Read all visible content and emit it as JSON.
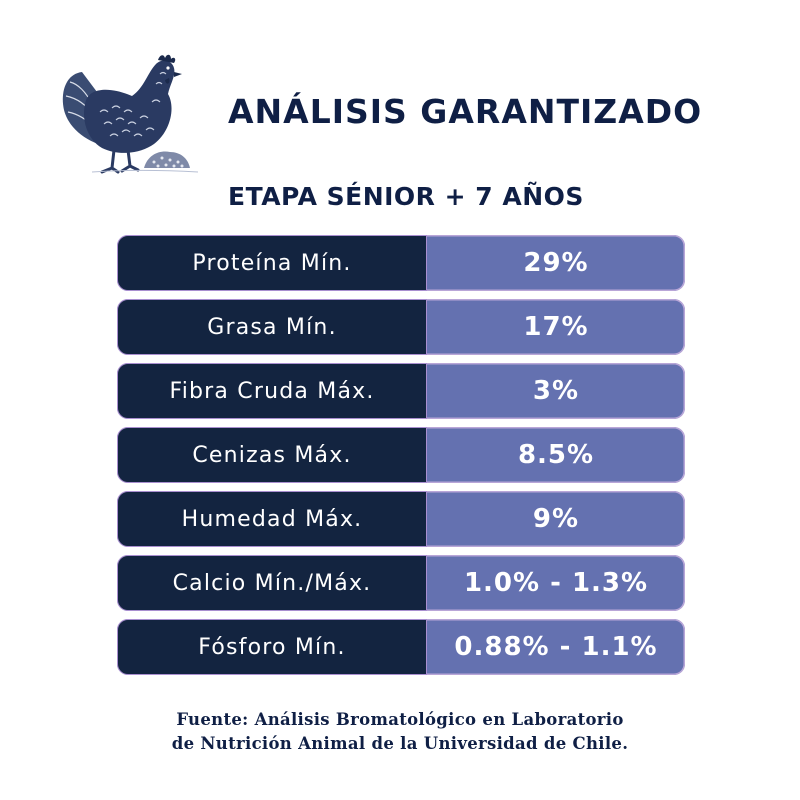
{
  "header": {
    "logo_icon": "hen-icon",
    "title": "ANÁLISIS GARANTIZADO",
    "subtitle": "ETAPA SÉNIOR + 7 AÑOS"
  },
  "analysis": {
    "rows": [
      {
        "label": "Proteína Mín.",
        "value": "29%"
      },
      {
        "label": "Grasa Mín.",
        "value": "17%"
      },
      {
        "label": "Fibra Cruda Máx.",
        "value": "3%"
      },
      {
        "label": "Cenizas Máx.",
        "value": "8.5%"
      },
      {
        "label": "Humedad Máx.",
        "value": "9%"
      },
      {
        "label": "Calcio Mín./Máx.",
        "value": "1.0% - 1.3%"
      },
      {
        "label": "Fósforo Mín.",
        "value": "0.88% - 1.1%"
      }
    ]
  },
  "footer": {
    "line1": "Fuente: Análisis Bromatológico en Laboratorio",
    "line2": "de Nutrición Animal  de la Universidad de Chile."
  },
  "colors": {
    "navy": "#132440",
    "periwinkle": "#6471b0",
    "text_dark": "#0f1f45"
  }
}
